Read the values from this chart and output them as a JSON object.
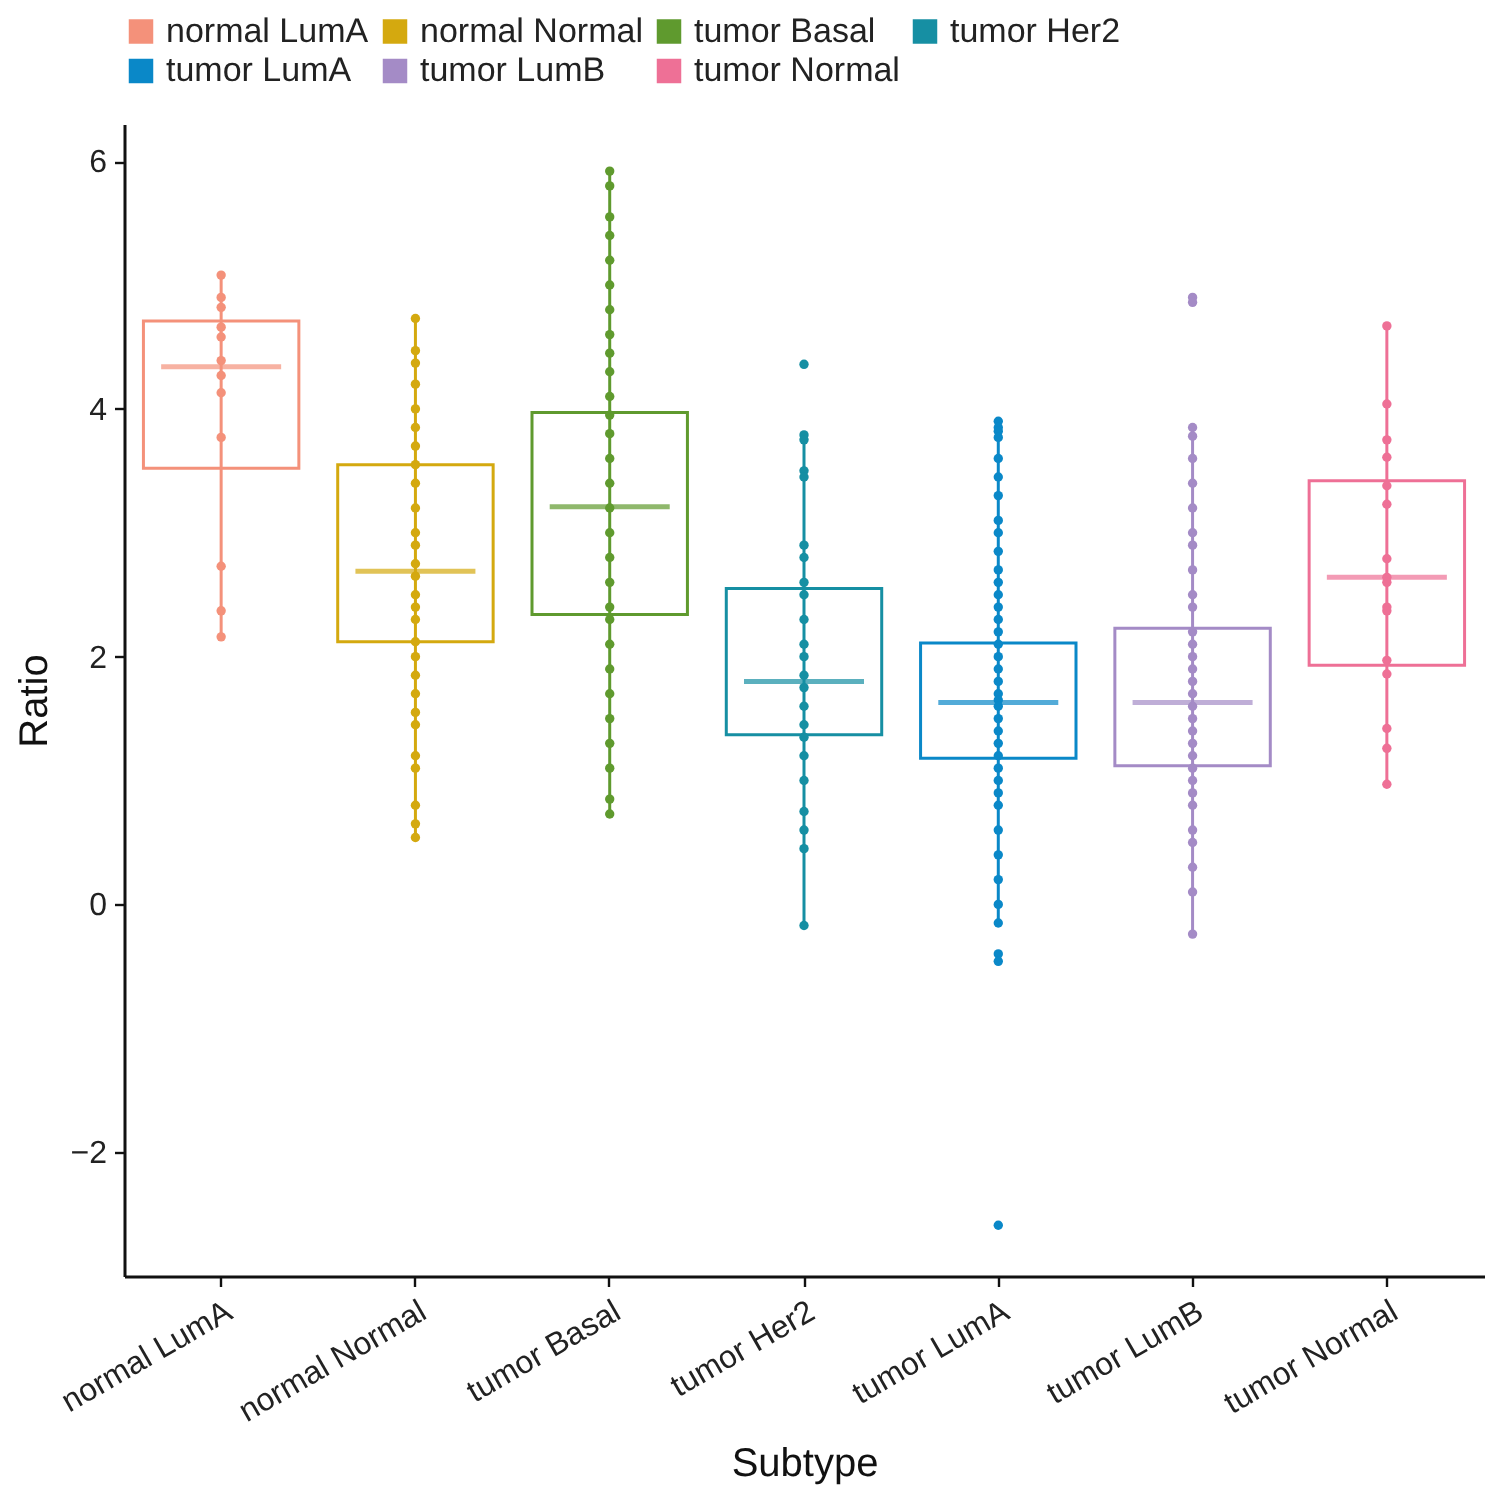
{
  "chart_data": {
    "type": "box",
    "xlabel": "Subtype",
    "ylabel": "Ratio",
    "legend": "top",
    "categories": [
      "normal LumA",
      "normal Normal",
      "tumor Basal",
      "tumor Her2",
      "tumor LumA",
      "tumor LumB",
      "tumor Normal"
    ],
    "colors": [
      "#f4917a",
      "#d4a90f",
      "#5f9a2e",
      "#168fa3",
      "#0a88c8",
      "#a48bc6",
      "#ee7096"
    ],
    "boxes": [
      {
        "low": 2.16,
        "q1": 3.52,
        "median": 4.34,
        "q3": 4.71,
        "high": 5.08
      },
      {
        "low": 0.54,
        "q1": 2.12,
        "median": 2.69,
        "q3": 3.55,
        "high": 4.73
      },
      {
        "low": 0.73,
        "q1": 2.34,
        "median": 3.21,
        "q3": 3.97,
        "high": 5.92
      },
      {
        "low": -0.17,
        "q1": 1.37,
        "median": 1.8,
        "q3": 2.55,
        "high": 3.79
      },
      {
        "low": -0.15,
        "q1": 1.18,
        "median": 1.63,
        "q3": 2.11,
        "high": 3.77
      },
      {
        "low": -0.24,
        "q1": 1.12,
        "median": 1.63,
        "q3": 2.23,
        "high": 3.85
      },
      {
        "low": 0.97,
        "q1": 1.93,
        "median": 2.64,
        "q3": 3.42,
        "high": 4.67
      }
    ],
    "series": [
      {
        "type": "scatter",
        "name": "normal LumA",
        "color": "#f4917a",
        "x": [
          "normal LumA",
          "normal LumA",
          "normal LumA",
          "normal LumA",
          "normal LumA",
          "normal LumA",
          "normal LumA",
          "normal LumA",
          "normal LumA",
          "normal LumA",
          "normal LumA",
          "normal LumA"
        ],
        "values": [
          5.08,
          4.9,
          4.82,
          4.66,
          4.58,
          4.39,
          4.27,
          4.13,
          3.77,
          2.73,
          2.37,
          2.16
        ]
      },
      {
        "type": "scatter",
        "name": "normal Normal",
        "color": "#d4a90f",
        "x": [
          "normal Normal",
          "normal Normal",
          "normal Normal",
          "normal Normal",
          "normal Normal",
          "normal Normal",
          "normal Normal",
          "normal Normal",
          "normal Normal",
          "normal Normal",
          "normal Normal",
          "normal Normal",
          "normal Normal",
          "normal Normal",
          "normal Normal",
          "normal Normal",
          "normal Normal",
          "normal Normal",
          "normal Normal",
          "normal Normal",
          "normal Normal",
          "normal Normal",
          "normal Normal",
          "normal Normal",
          "normal Normal",
          "normal Normal",
          "normal Normal",
          "normal Normal"
        ],
        "values": [
          4.73,
          4.47,
          4.37,
          4.2,
          4.0,
          3.85,
          3.7,
          3.55,
          3.4,
          3.2,
          3.0,
          2.9,
          2.75,
          2.65,
          2.5,
          2.4,
          2.3,
          2.12,
          2.0,
          1.85,
          1.7,
          1.55,
          1.45,
          1.2,
          1.1,
          0.8,
          0.65,
          0.54
        ]
      },
      {
        "type": "scatter",
        "name": "tumor Basal",
        "color": "#5f9a2e",
        "x": [
          "tumor Basal",
          "tumor Basal",
          "tumor Basal",
          "tumor Basal",
          "tumor Basal",
          "tumor Basal",
          "tumor Basal",
          "tumor Basal",
          "tumor Basal",
          "tumor Basal",
          "tumor Basal",
          "tumor Basal",
          "tumor Basal",
          "tumor Basal",
          "tumor Basal",
          "tumor Basal",
          "tumor Basal",
          "tumor Basal",
          "tumor Basal",
          "tumor Basal",
          "tumor Basal",
          "tumor Basal",
          "tumor Basal",
          "tumor Basal",
          "tumor Basal",
          "tumor Basal",
          "tumor Basal",
          "tumor Basal",
          "tumor Basal"
        ],
        "values": [
          5.92,
          5.8,
          5.55,
          5.4,
          5.2,
          5.0,
          4.8,
          4.6,
          4.45,
          4.3,
          4.1,
          3.95,
          3.8,
          3.6,
          3.4,
          3.2,
          3.0,
          2.8,
          2.6,
          2.4,
          2.3,
          2.1,
          1.9,
          1.7,
          1.5,
          1.3,
          1.1,
          0.85,
          0.73
        ]
      },
      {
        "type": "scatter",
        "name": "tumor Her2",
        "color": "#168fa3",
        "x": [
          "tumor Her2",
          "tumor Her2",
          "tumor Her2",
          "tumor Her2",
          "tumor Her2",
          "tumor Her2",
          "tumor Her2",
          "tumor Her2",
          "tumor Her2",
          "tumor Her2",
          "tumor Her2",
          "tumor Her2",
          "tumor Her2",
          "tumor Her2",
          "tumor Her2",
          "tumor Her2",
          "tumor Her2",
          "tumor Her2",
          "tumor Her2",
          "tumor Her2",
          "tumor Her2",
          "tumor Her2",
          "tumor Her2"
        ],
        "values": [
          4.36,
          3.79,
          3.75,
          3.5,
          3.45,
          2.9,
          2.8,
          2.6,
          2.5,
          2.3,
          2.1,
          2.0,
          1.85,
          1.75,
          1.6,
          1.45,
          1.35,
          1.2,
          1.0,
          0.75,
          0.6,
          0.45,
          -0.17
        ]
      },
      {
        "type": "scatter",
        "name": "tumor LumA",
        "color": "#0a88c8",
        "x": [
          "tumor LumA",
          "tumor LumA",
          "tumor LumA",
          "tumor LumA",
          "tumor LumA",
          "tumor LumA",
          "tumor LumA",
          "tumor LumA",
          "tumor LumA",
          "tumor LumA",
          "tumor LumA",
          "tumor LumA",
          "tumor LumA",
          "tumor LumA",
          "tumor LumA",
          "tumor LumA",
          "tumor LumA",
          "tumor LumA",
          "tumor LumA",
          "tumor LumA",
          "tumor LumA",
          "tumor LumA",
          "tumor LumA",
          "tumor LumA",
          "tumor LumA",
          "tumor LumA",
          "tumor LumA",
          "tumor LumA",
          "tumor LumA",
          "tumor LumA",
          "tumor LumA",
          "tumor LumA",
          "tumor LumA",
          "tumor LumA",
          "tumor LumA",
          "tumor LumA",
          "tumor LumA",
          "tumor LumA",
          "tumor LumA"
        ],
        "values": [
          3.9,
          3.85,
          3.82,
          3.77,
          3.6,
          3.45,
          3.3,
          3.1,
          3.0,
          2.85,
          2.7,
          2.6,
          2.5,
          2.4,
          2.3,
          2.2,
          2.1,
          2.0,
          1.9,
          1.8,
          1.7,
          1.65,
          1.6,
          1.5,
          1.4,
          1.3,
          1.2,
          1.1,
          1.0,
          0.9,
          0.8,
          0.6,
          0.4,
          0.2,
          0.0,
          -0.15,
          -0.4,
          -0.46,
          -2.59
        ]
      },
      {
        "type": "scatter",
        "name": "tumor LumB",
        "color": "#a48bc6",
        "x": [
          "tumor LumB",
          "tumor LumB",
          "tumor LumB",
          "tumor LumB",
          "tumor LumB",
          "tumor LumB",
          "tumor LumB",
          "tumor LumB",
          "tumor LumB",
          "tumor LumB",
          "tumor LumB",
          "tumor LumB",
          "tumor LumB",
          "tumor LumB",
          "tumor LumB",
          "tumor LumB",
          "tumor LumB",
          "tumor LumB",
          "tumor LumB",
          "tumor LumB",
          "tumor LumB",
          "tumor LumB",
          "tumor LumB",
          "tumor LumB",
          "tumor LumB",
          "tumor LumB",
          "tumor LumB",
          "tumor LumB",
          "tumor LumB",
          "tumor LumB",
          "tumor LumB",
          "tumor LumB"
        ],
        "values": [
          4.9,
          4.86,
          3.85,
          3.78,
          3.6,
          3.4,
          3.2,
          3.0,
          2.9,
          2.7,
          2.5,
          2.4,
          2.2,
          2.1,
          2.0,
          1.9,
          1.8,
          1.7,
          1.6,
          1.5,
          1.4,
          1.3,
          1.2,
          1.1,
          1.0,
          0.9,
          0.8,
          0.6,
          0.5,
          0.3,
          0.1,
          -0.24
        ]
      },
      {
        "type": "scatter",
        "name": "tumor Normal",
        "color": "#ee7096",
        "x": [
          "tumor Normal",
          "tumor Normal",
          "tumor Normal",
          "tumor Normal",
          "tumor Normal",
          "tumor Normal",
          "tumor Normal",
          "tumor Normal",
          "tumor Normal",
          "tumor Normal",
          "tumor Normal",
          "tumor Normal",
          "tumor Normal",
          "tumor Normal",
          "tumor Normal",
          "tumor Normal"
        ],
        "values": [
          4.67,
          4.04,
          3.75,
          3.61,
          3.38,
          3.23,
          2.79,
          2.64,
          2.6,
          2.4,
          2.37,
          1.97,
          1.86,
          1.42,
          1.26,
          0.97
        ]
      }
    ],
    "ylim": [
      -3,
      6.3
    ],
    "yticks": [
      -2,
      0,
      2,
      4,
      6
    ],
    "grid": false
  }
}
